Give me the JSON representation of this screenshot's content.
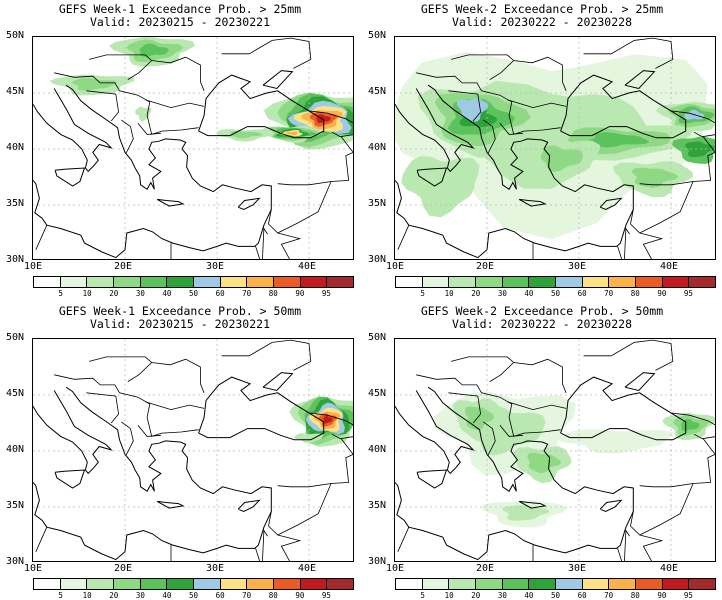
{
  "colors": {
    "scale": [
      "#ffffff",
      "#e4f6de",
      "#b9e8b1",
      "#8fd985",
      "#5cc25b",
      "#2ea33a",
      "#9ecae6",
      "#fde285",
      "#fbb24a",
      "#ea5b25",
      "#c11b1f",
      "#a3292d"
    ],
    "coast": "#000000",
    "grid": "#bbbbbb"
  },
  "colorbar_labels": [
    "5",
    "10",
    "20",
    "30",
    "40",
    "50",
    "60",
    "70",
    "80",
    "90",
    "95"
  ],
  "lat_labels": [
    "50N",
    "45N",
    "40N",
    "35N",
    "30N"
  ],
  "lon_labels": [
    "10E",
    "20E",
    "30E",
    "40E"
  ],
  "panels": [
    {
      "title": "GEFS Week-1 Exceedance Prob. > 25mm",
      "valid": "Valid: 20230215 - 20230221",
      "field": "w1-25"
    },
    {
      "title": "GEFS Week-2 Exceedance Prob. > 25mm",
      "valid": "Valid: 20230222 - 20230228",
      "field": "w2-25"
    },
    {
      "title": "GEFS Week-1 Exceedance Prob. > 50mm",
      "valid": "Valid: 20230215 - 20230221",
      "field": "w1-50"
    },
    {
      "title": "GEFS Week-2 Exceedance Prob. > 50mm",
      "valid": "Valid: 20230222 - 20230228",
      "field": "w2-50"
    }
  ]
}
